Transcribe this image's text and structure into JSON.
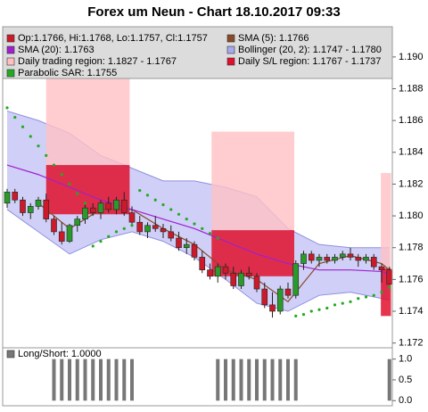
{
  "chart_data": [
    {
      "type": "candlestick",
      "title": "Forex um Neun - Chart 18.10.2017 09:33",
      "ylim": [
        1.1717,
        1.1919
      ],
      "yticks": [
        1.172,
        1.174,
        1.176,
        1.178,
        {
          "value": 1.18,
          "label": "1.180"
        },
        1.182,
        1.184,
        1.186,
        1.188,
        {
          "value": 1.19,
          "label": "1.190"
        }
      ],
      "ohlc": {
        "name": "Op:1.1766, Hi:1.1768, Lo:1.1757, Cl:1.1757",
        "color": "#cc1a2a",
        "up_color": "#2a9a2a",
        "open": [
          1.1808,
          1.1815,
          1.181,
          1.1802,
          1.1806,
          1.181,
          1.1798,
          1.179,
          1.1784,
          1.1794,
          1.1798,
          1.1805,
          1.1802,
          1.1808,
          1.1804,
          1.181,
          1.1802,
          1.1796,
          1.179,
          1.1794,
          1.1792,
          1.179,
          1.1786,
          1.178,
          1.1782,
          1.1774,
          1.1766,
          1.1762,
          1.1768,
          1.1764,
          1.1756,
          1.1764,
          1.1762,
          1.1754,
          1.1744,
          1.174,
          1.1754,
          1.175,
          1.177,
          1.1776,
          1.1772,
          1.1774,
          1.1772,
          1.1774,
          1.1776,
          1.1774,
          1.1772,
          1.1774,
          1.1768,
          1.1766
        ],
        "high": [
          1.1817,
          1.1817,
          1.1812,
          1.1808,
          1.1812,
          1.1814,
          1.18,
          1.1796,
          1.1795,
          1.18,
          1.1807,
          1.1808,
          1.181,
          1.1812,
          1.1812,
          1.1815,
          1.1806,
          1.18,
          1.1796,
          1.18,
          1.1795,
          1.1794,
          1.179,
          1.1786,
          1.1784,
          1.1778,
          1.177,
          1.177,
          1.177,
          1.1768,
          1.1766,
          1.1768,
          1.1764,
          1.1758,
          1.1752,
          1.1756,
          1.1758,
          1.1772,
          1.1778,
          1.1778,
          1.1776,
          1.1776,
          1.1776,
          1.1778,
          1.178,
          1.1776,
          1.1776,
          1.1776,
          1.177,
          1.1768
        ],
        "low": [
          1.1805,
          1.1808,
          1.18,
          1.1798,
          1.1804,
          1.1796,
          1.1788,
          1.1782,
          1.1783,
          1.179,
          1.1795,
          1.18,
          1.1798,
          1.1802,
          1.1801,
          1.18,
          1.1794,
          1.1788,
          1.1786,
          1.179,
          1.1786,
          1.1784,
          1.1778,
          1.1776,
          1.1772,
          1.1764,
          1.176,
          1.1758,
          1.176,
          1.1754,
          1.1754,
          1.176,
          1.1752,
          1.1742,
          1.1736,
          1.1738,
          1.1748,
          1.1748,
          1.1766,
          1.177,
          1.1768,
          1.177,
          1.177,
          1.1772,
          1.1772,
          1.1768,
          1.177,
          1.1766,
          1.1758,
          1.1757
        ],
        "close": [
          1.1815,
          1.181,
          1.1802,
          1.1806,
          1.181,
          1.1798,
          1.179,
          1.1784,
          1.1794,
          1.1798,
          1.1805,
          1.1802,
          1.1808,
          1.1804,
          1.181,
          1.1802,
          1.1796,
          1.179,
          1.1794,
          1.1792,
          1.179,
          1.1786,
          1.178,
          1.1782,
          1.1774,
          1.1766,
          1.1762,
          1.1768,
          1.1764,
          1.1756,
          1.1764,
          1.1762,
          1.1754,
          1.1744,
          1.174,
          1.1754,
          1.175,
          1.177,
          1.1776,
          1.1772,
          1.1774,
          1.1772,
          1.1774,
          1.1776,
          1.1774,
          1.1772,
          1.1774,
          1.1768,
          1.1766,
          1.1757
        ]
      },
      "lines": [
        {
          "name": "SMA (5): 1.1766",
          "color": "#8a4a2a",
          "x": [
            4,
            8,
            12,
            16,
            20,
            24,
            28,
            32,
            36,
            40,
            44,
            48,
            49
          ],
          "values": [
            1.1808,
            1.1792,
            1.1804,
            1.1804,
            1.1792,
            1.1782,
            1.1766,
            1.176,
            1.1746,
            1.177,
            1.1775,
            1.177,
            1.1766
          ]
        },
        {
          "name": "SMA (20): 1.1763",
          "color": "#a020d0",
          "x": [
            0,
            4,
            8,
            12,
            16,
            20,
            24,
            28,
            32,
            36,
            40,
            44,
            48,
            49
          ],
          "values": [
            1.1832,
            1.1826,
            1.1818,
            1.181,
            1.1804,
            1.1798,
            1.1792,
            1.1784,
            1.1776,
            1.177,
            1.1766,
            1.1766,
            1.1765,
            1.1763
          ]
        }
      ],
      "band": {
        "name": "Bollinger (20, 2): 1.1747 - 1.1780",
        "color": "#a8a8f0",
        "x": [
          0,
          4,
          8,
          12,
          16,
          20,
          24,
          28,
          32,
          36,
          40,
          44,
          49
        ],
        "upper": [
          1.1866,
          1.186,
          1.1852,
          1.1838,
          1.183,
          1.1822,
          1.1822,
          1.1818,
          1.1812,
          1.1792,
          1.1782,
          1.178,
          1.178
        ],
        "lower": [
          1.1804,
          1.179,
          1.1776,
          1.1785,
          1.179,
          1.1784,
          1.1774,
          1.176,
          1.1745,
          1.174,
          1.175,
          1.1752,
          1.1747
        ]
      },
      "regions": [
        {
          "name": "Daily trading region: 1.1827 - 1.1767",
          "color": "#ffc0c4",
          "items": [
            {
              "x0": 5,
              "x1": 15.7,
              "high": 1.1892,
              "low": 1.1832
            },
            {
              "x0": 26.2,
              "x1": 36.8,
              "high": 1.1853,
              "low": 1.1791
            },
            {
              "x0": 47.9,
              "x1": 49.2,
              "high": 1.1827,
              "low": 1.1767
            }
          ]
        },
        {
          "name": "Daily S/L region: 1.1767 - 1.1737",
          "color": "#e0102c",
          "items": [
            {
              "x0": 5,
              "x1": 15.7,
              "high": 1.1832,
              "low": 1.1801
            },
            {
              "x0": 26.2,
              "x1": 36.8,
              "high": 1.1791,
              "low": 1.1762
            },
            {
              "x0": 47.9,
              "x1": 49.2,
              "high": 1.1767,
              "low": 1.1737
            }
          ]
        }
      ],
      "sar": {
        "name": "Parabolic SAR: 1.1755",
        "color": "#22aa22",
        "values": [
          1.1868,
          1.1862,
          1.1856,
          1.185,
          1.1844,
          1.1838,
          1.1832,
          1.1826,
          1.182,
          1.1814,
          1.1808,
          1.1781,
          1.1784,
          1.1787,
          1.179,
          1.1792,
          1.1794,
          1.1816,
          1.1813,
          1.181,
          1.1807,
          1.1804,
          1.1801,
          1.1798,
          1.1795,
          1.1792,
          1.1789,
          1.1786,
          null,
          null,
          null,
          null,
          null,
          null,
          null,
          null,
          null,
          1.1737,
          1.1738,
          1.174,
          1.1741,
          1.1742,
          1.1744,
          1.1745,
          1.1746,
          1.1748,
          1.1749,
          1.175,
          1.1752,
          1.1755
        ]
      }
    },
    {
      "type": "bar",
      "title": "Long/Short: 1.0000",
      "color": "#777777",
      "ylim": [
        -0.08,
        1.25
      ],
      "yticks": [
        {
          "value": 0,
          "label": "0.0"
        },
        {
          "value": 0.5,
          "label": "0.5"
        },
        {
          "value": 1,
          "label": "1.0"
        }
      ],
      "values": [
        0,
        0,
        0,
        0,
        0,
        0,
        1,
        1,
        1,
        1,
        1,
        1,
        1,
        1,
        1,
        1,
        1,
        0,
        0,
        0,
        0,
        0,
        0,
        0,
        0,
        0,
        0,
        1,
        1,
        1,
        1,
        1,
        1,
        1,
        1,
        1,
        1,
        1,
        0,
        0,
        0,
        0,
        0,
        0,
        0,
        0,
        0,
        0,
        0,
        1
      ]
    }
  ]
}
